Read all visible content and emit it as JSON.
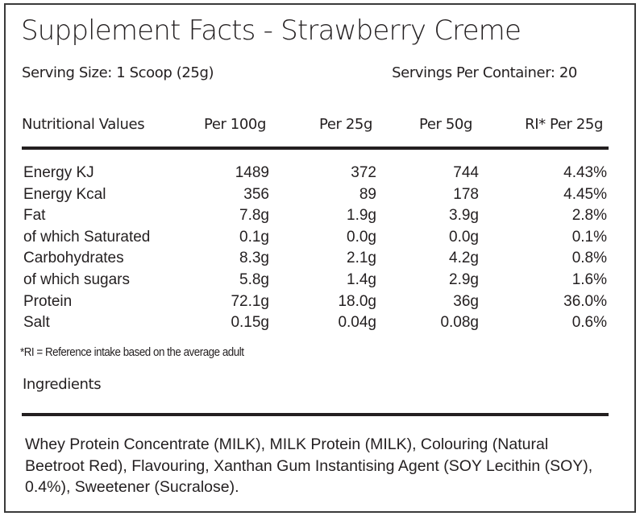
{
  "title": "Supplement Facts - Strawberry Creme",
  "serving_size": "Serving Size: 1 Scoop (25g)",
  "servings_per_container": "Servings Per Container: 20",
  "columns": [
    "Nutritional Values",
    "Per 100g",
    "Per 25g",
    "Per 50g",
    "RI* Per 25g"
  ],
  "rows": [
    [
      "Energy KJ",
      "1489",
      "372",
      "744",
      "4.43%"
    ],
    [
      "Energy Kcal",
      "356",
      "89",
      "178",
      "4.45%"
    ],
    [
      "Fat",
      "7.8g",
      "1.9g",
      "3.9g",
      "2.8%"
    ],
    [
      "of which Saturated",
      "0.1g",
      "0.0g",
      "0.0g",
      "0.1%"
    ],
    [
      "Carbohydrates",
      "8.3g",
      "2.1g",
      "4.2g",
      "0.8%"
    ],
    [
      "of which sugars",
      "5.8g",
      "1.4g",
      "2.9g",
      "1.6%"
    ],
    [
      "Protein",
      "72.1g",
      "18.0g",
      "36g",
      "36.0%"
    ],
    [
      "Salt",
      "0.15g",
      "0.04g",
      "0.08g",
      "0.6%"
    ]
  ],
  "footnote": "*RI = Reference intake based on the average adult",
  "ingredients_heading": "Ingredients",
  "ingredients_text": "Whey Protein Concentrate (MILK), MILK Protein (MILK), Colouring (Natural Beetroot Red), Flavouring, Xanthan Gum Instantising Agent (SOY Lecithin (SOY), 0.4%), Sweetener (Sucralose)."
}
